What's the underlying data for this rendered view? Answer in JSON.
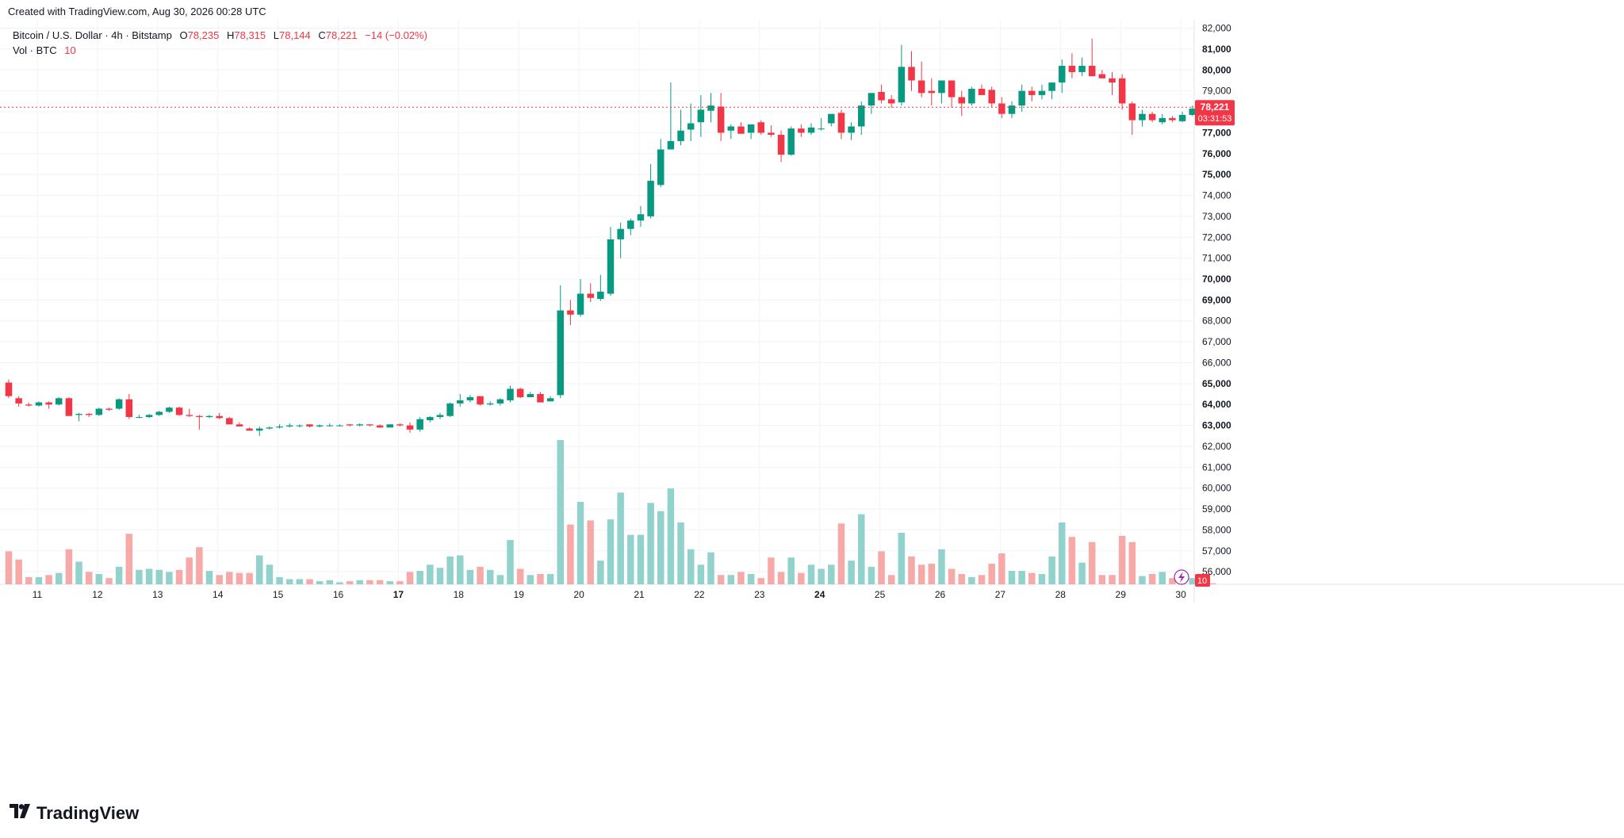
{
  "header": {
    "created_text": "Created with TradingView.com, Aug 30, 2026 00:28 UTC"
  },
  "legend": {
    "symbol": "Bitcoin / U.S. Dollar · 4h · Bitstamp",
    "o_label": "O",
    "o_value": "78,235",
    "h_label": "H",
    "h_value": "78,315",
    "l_label": "L",
    "l_value": "78,144",
    "c_label": "C",
    "c_value": "78,221",
    "change": "−14 (−0.02%)",
    "vol_label": "Vol · BTC",
    "vol_value": "10"
  },
  "price_marker": {
    "price": "78,221",
    "countdown": "03:31:53",
    "value": 78221
  },
  "vol_marker": {
    "value": "10"
  },
  "footer": {
    "brand": "TradingView"
  },
  "colors": {
    "up": "#089981",
    "down": "#f23645",
    "vol_up": "#92d2cc",
    "vol_down": "#f7a9a7",
    "grid": "#f0f3fa",
    "axis_text": "#131722"
  },
  "chart_data": {
    "type": "candlestick",
    "title": "Bitcoin / U.S. Dollar · 4h · Bitstamp",
    "y_ticks": [
      "56,000",
      "57,000",
      "58,000",
      "59,000",
      "60,000",
      "61,000",
      "62,000",
      "63,000",
      "64,000",
      "65,000",
      "66,000",
      "67,000",
      "68,000",
      "69,000",
      "70,000",
      "71,000",
      "72,000",
      "73,000",
      "74,000",
      "75,000",
      "76,000",
      "77,000",
      "78,000",
      "79,000",
      "80,000",
      "81,000",
      "82,000"
    ],
    "y_bold": [
      "63,000",
      "64,000",
      "65,000",
      "69,000",
      "70,000",
      "75,000",
      "76,000",
      "77,000",
      "80,000",
      "81,000"
    ],
    "ylim": [
      55400,
      82400
    ],
    "x_ticks": [
      "11",
      "12",
      "13",
      "14",
      "15",
      "16",
      "17",
      "18",
      "19",
      "20",
      "21",
      "22",
      "23",
      "24",
      "25",
      "26",
      "27",
      "28",
      "29",
      "30"
    ],
    "x_bold": [
      "17",
      "24"
    ],
    "grid": true,
    "candles": [
      [
        65050,
        65200,
        64300,
        64400,
        3.2
      ],
      [
        64300,
        64400,
        63900,
        64050,
        2.4
      ],
      [
        64000,
        64100,
        63900,
        63950,
        0.7
      ],
      [
        63950,
        64150,
        63900,
        64100,
        0.7
      ],
      [
        64100,
        64150,
        63800,
        64000,
        0.9
      ],
      [
        64000,
        64350,
        63950,
        64300,
        1.1
      ],
      [
        64300,
        64350,
        63500,
        63450,
        3.4
      ],
      [
        63500,
        63600,
        63200,
        63550,
        2.2
      ],
      [
        63550,
        63600,
        63400,
        63500,
        1.2
      ],
      [
        63500,
        63850,
        63450,
        63800,
        1.0
      ],
      [
        63800,
        63850,
        63700,
        63750,
        0.6
      ],
      [
        63800,
        64300,
        63750,
        64250,
        1.7
      ],
      [
        64250,
        64500,
        63300,
        63400,
        4.9
      ],
      [
        63400,
        63500,
        63350,
        63400,
        1.4
      ],
      [
        63400,
        63550,
        63350,
        63500,
        1.5
      ],
      [
        63500,
        63700,
        63450,
        63650,
        1.4
      ],
      [
        63650,
        63900,
        63600,
        63850,
        1.2
      ],
      [
        63850,
        63900,
        63450,
        63500,
        1.4
      ],
      [
        63500,
        63800,
        63400,
        63450,
        2.6
      ],
      [
        63450,
        63500,
        62800,
        63400,
        3.6
      ],
      [
        63400,
        63500,
        63350,
        63450,
        1.3
      ],
      [
        63450,
        63600,
        63300,
        63350,
        0.9
      ],
      [
        63350,
        63400,
        63100,
        63050,
        1.2
      ],
      [
        63050,
        63150,
        62950,
        62950,
        1.1
      ],
      [
        62850,
        62900,
        62750,
        62750,
        1.1
      ],
      [
        62750,
        62950,
        62500,
        62850,
        2.8
      ],
      [
        62850,
        62950,
        62800,
        62900,
        1.9
      ],
      [
        62900,
        63050,
        62850,
        62950,
        0.7
      ],
      [
        62950,
        63100,
        62900,
        63000,
        0.5
      ],
      [
        63000,
        63050,
        62900,
        63000,
        0.5
      ],
      [
        63050,
        63050,
        62900,
        62950,
        0.5
      ],
      [
        62950,
        63050,
        62900,
        63000,
        0.3
      ],
      [
        63000,
        63100,
        62950,
        63000,
        0.4
      ],
      [
        63000,
        63050,
        62950,
        63000,
        0.2
      ],
      [
        63050,
        63050,
        62950,
        63000,
        0.3
      ],
      [
        63000,
        63100,
        62950,
        63050,
        0.4
      ],
      [
        63050,
        63050,
        62950,
        63000,
        0.4
      ],
      [
        63000,
        63050,
        62900,
        62900,
        0.4
      ],
      [
        62900,
        63050,
        62900,
        63050,
        0.3
      ],
      [
        63050,
        63100,
        62950,
        63000,
        0.3
      ],
      [
        63000,
        63150,
        62650,
        62800,
        1.2
      ],
      [
        62800,
        63400,
        62700,
        63300,
        1.3
      ],
      [
        63250,
        63450,
        63150,
        63400,
        1.9
      ],
      [
        63400,
        63600,
        63300,
        63500,
        1.6
      ],
      [
        63450,
        64100,
        63400,
        64050,
        2.7
      ],
      [
        64050,
        64500,
        63900,
        64200,
        2.8
      ],
      [
        64200,
        64450,
        64100,
        64350,
        1.4
      ],
      [
        64400,
        64400,
        63950,
        64000,
        1.7
      ],
      [
        64000,
        64150,
        63950,
        64050,
        1.4
      ],
      [
        64050,
        64300,
        63950,
        64250,
        0.9
      ],
      [
        64200,
        64900,
        64100,
        64750,
        4.3
      ],
      [
        64750,
        64800,
        64300,
        64350,
        1.5
      ],
      [
        64350,
        64600,
        64350,
        64500,
        0.9
      ],
      [
        64500,
        64600,
        64100,
        64100,
        1.0
      ],
      [
        64150,
        64400,
        64150,
        64300,
        1.0
      ],
      [
        64450,
        69700,
        64300,
        68500,
        14.0
      ],
      [
        68500,
        69000,
        67800,
        68300,
        5.8
      ],
      [
        68300,
        70000,
        68200,
        69300,
        8.0
      ],
      [
        69300,
        69800,
        68900,
        69100,
        6.2
      ],
      [
        69050,
        70200,
        68950,
        69400,
        2.3
      ],
      [
        69300,
        72500,
        69200,
        71900,
        6.3
      ],
      [
        71900,
        72700,
        71000,
        72400,
        8.9
      ],
      [
        72400,
        72900,
        72100,
        72800,
        4.8
      ],
      [
        72800,
        73500,
        72500,
        73100,
        4.8
      ],
      [
        73000,
        75500,
        72900,
        74700,
        7.9
      ],
      [
        74500,
        76700,
        74400,
        76200,
        7.1
      ],
      [
        76200,
        79400,
        76200,
        76600,
        9.3
      ],
      [
        76600,
        78100,
        76400,
        77100,
        6.0
      ],
      [
        77150,
        78400,
        76600,
        77450,
        3.4
      ],
      [
        77500,
        78800,
        76800,
        78100,
        1.9
      ],
      [
        78050,
        78900,
        77500,
        78300,
        3.1
      ],
      [
        78250,
        78900,
        76600,
        77000,
        0.9
      ],
      [
        77100,
        77400,
        76700,
        77300,
        0.9
      ],
      [
        77300,
        77500,
        77100,
        76950,
        1.2
      ],
      [
        77000,
        77400,
        76700,
        77400,
        1.0
      ],
      [
        77500,
        77600,
        76900,
        77000,
        0.6
      ],
      [
        77000,
        77350,
        76800,
        76900,
        2.6
      ],
      [
        76900,
        77100,
        75600,
        75950,
        1.2
      ],
      [
        75950,
        77300,
        75900,
        77200,
        2.6
      ],
      [
        77200,
        77400,
        76800,
        77000,
        1.1
      ],
      [
        77000,
        77450,
        76900,
        77250,
        1.9
      ],
      [
        77200,
        77700,
        77100,
        77200,
        1.5
      ],
      [
        77450,
        77800,
        77300,
        77900,
        1.9
      ],
      [
        77950,
        78100,
        76700,
        77000,
        5.9
      ],
      [
        77000,
        77500,
        76650,
        77300,
        2.3
      ],
      [
        77300,
        78500,
        76900,
        78300,
        6.8
      ],
      [
        78300,
        78900,
        77900,
        78900,
        1.7
      ],
      [
        78950,
        79300,
        78400,
        78550,
        3.2
      ],
      [
        78600,
        78800,
        78200,
        78400,
        0.9
      ],
      [
        78450,
        81200,
        78300,
        80150,
        5.0
      ],
      [
        80150,
        80900,
        79000,
        79500,
        2.7
      ],
      [
        79500,
        80400,
        78700,
        78900,
        1.9
      ],
      [
        79000,
        79600,
        78300,
        78900,
        2.0
      ],
      [
        78900,
        79400,
        78400,
        79500,
        3.4
      ],
      [
        79500,
        79500,
        78200,
        78700,
        1.5
      ],
      [
        78700,
        79000,
        77800,
        78400,
        1.0
      ],
      [
        78400,
        79200,
        78300,
        79100,
        0.7
      ],
      [
        79100,
        79300,
        78800,
        78800,
        0.9
      ],
      [
        79050,
        79200,
        78200,
        78400,
        2.0
      ],
      [
        78400,
        78700,
        77700,
        77900,
        3.0
      ],
      [
        77900,
        78500,
        77700,
        78300,
        1.3
      ],
      [
        78300,
        79300,
        78000,
        79000,
        1.3
      ],
      [
        79000,
        79200,
        78500,
        78800,
        1.1
      ],
      [
        78800,
        79300,
        78600,
        79000,
        1.0
      ],
      [
        79000,
        79400,
        78600,
        79400,
        2.7
      ],
      [
        79400,
        80500,
        78900,
        80200,
        6.0
      ],
      [
        80200,
        80800,
        79600,
        79900,
        4.6
      ],
      [
        79900,
        80600,
        79700,
        80200,
        2.1
      ],
      [
        80200,
        81500,
        79800,
        79700,
        4.1
      ],
      [
        79800,
        80000,
        79600,
        79600,
        0.9
      ],
      [
        79600,
        79900,
        78800,
        79400,
        0.9
      ],
      [
        79600,
        79800,
        78100,
        78400,
        4.7
      ],
      [
        78400,
        78500,
        76900,
        77600,
        4.1
      ],
      [
        77600,
        78100,
        77300,
        77900,
        0.8
      ],
      [
        77900,
        78000,
        77500,
        77600,
        1.0
      ],
      [
        77500,
        77900,
        77400,
        77700,
        1.2
      ],
      [
        77700,
        77800,
        77500,
        77600,
        0.6
      ],
      [
        77550,
        78000,
        77500,
        77850,
        0.5
      ],
      [
        77850,
        78300,
        77800,
        78150,
        0.6
      ],
      [
        78100,
        78350,
        78050,
        78200,
        0.3
      ],
      [
        78235,
        78315,
        78144,
        78221,
        0.1
      ]
    ]
  }
}
